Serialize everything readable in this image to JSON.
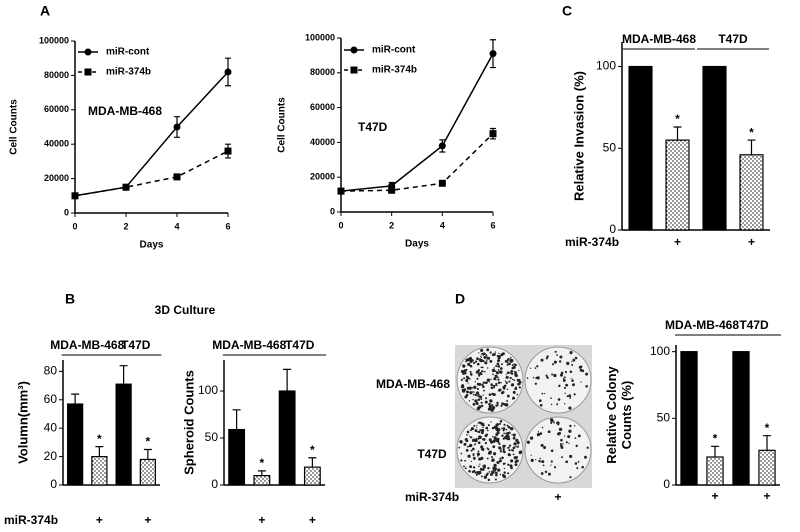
{
  "figure": {
    "panel_labels": [
      "A",
      "B",
      "C",
      "D"
    ],
    "section_title": "3D Culture",
    "colony_rows": [
      "MDA-MB-468",
      "T47D"
    ],
    "colony_treatment_label": "miR-374b",
    "colony_columns": [
      null,
      "+"
    ]
  },
  "chart_data": [
    {
      "type": "line",
      "ylabel": "Cell Counts",
      "xlabel": "Days",
      "annotation": "MDA-MB-468",
      "legend": "upper-left",
      "x": [
        0,
        2,
        4,
        6
      ],
      "xlim": [
        0,
        6
      ],
      "xticks": [
        0,
        2,
        4,
        6
      ],
      "ylim": [
        0,
        100000
      ],
      "yticks": [
        0,
        20000,
        40000,
        60000,
        80000,
        100000
      ],
      "series": [
        {
          "name": "miR-cont",
          "color": "#000000",
          "marker": "circle",
          "line_style": "solid",
          "values": [
            10000,
            15000,
            50000,
            82000
          ],
          "errors": [
            500,
            1000,
            6000,
            8000
          ]
        },
        {
          "name": "miR-374b",
          "color": "#000000",
          "marker": "square",
          "line_style": "dashed",
          "values": [
            10000,
            15000,
            21000,
            36000
          ],
          "errors": [
            500,
            1000,
            1500,
            4000
          ]
        }
      ]
    },
    {
      "type": "line",
      "ylabel": "Cell Counts",
      "xlabel": "Days",
      "annotation": "T47D",
      "legend": "upper-left",
      "x": [
        0,
        2,
        4,
        6
      ],
      "xlim": [
        0,
        6
      ],
      "xticks": [
        0,
        2,
        4,
        6
      ],
      "ylim": [
        0,
        100000
      ],
      "yticks": [
        0,
        20000,
        40000,
        60000,
        80000,
        100000
      ],
      "series": [
        {
          "name": "miR-cont",
          "color": "#000000",
          "marker": "circle",
          "line_style": "solid",
          "values": [
            12000,
            15000,
            38000,
            91000
          ],
          "errors": [
            1000,
            2000,
            3500,
            8000
          ]
        },
        {
          "name": "miR-374b",
          "color": "#000000",
          "marker": "square",
          "line_style": "dashed",
          "values": [
            12000,
            12500,
            16500,
            45000
          ],
          "errors": [
            1000,
            1500,
            1500,
            3000
          ]
        }
      ]
    },
    {
      "type": "bar",
      "ylabel": "Relative Invasion (%)",
      "groups": [
        "MDA-MB-468",
        "T47D"
      ],
      "category_axis_label": "miR-374b",
      "categories": [
        null,
        "+",
        null,
        "+"
      ],
      "values": [
        100,
        55,
        100,
        46
      ],
      "errors": [
        null,
        8,
        null,
        9
      ],
      "significance": [
        null,
        "*",
        null,
        "*"
      ],
      "fills": [
        "solid",
        "dotted",
        "solid",
        "dotted"
      ],
      "color": "#000000",
      "ylim": [
        0,
        115
      ],
      "yticks": [
        0,
        50,
        100
      ]
    },
    {
      "type": "bar",
      "ylabel": "Volumn(mm³)",
      "groups": [
        "MDA-MB-468",
        "T47D"
      ],
      "category_axis_label": "miR-374b",
      "categories": [
        null,
        "+",
        null,
        "+"
      ],
      "values": [
        57,
        20,
        71,
        18
      ],
      "errors": [
        7,
        7,
        13,
        7
      ],
      "significance": [
        null,
        "*",
        null,
        "*"
      ],
      "fills": [
        "solid",
        "dotted",
        "solid",
        "dotted"
      ],
      "color": "#000000",
      "ylim": [
        0,
        88
      ],
      "yticks": [
        0,
        20,
        40,
        60,
        80
      ]
    },
    {
      "type": "bar",
      "ylabel": "Spheroid Counts",
      "groups": [
        "MDA-MB-468",
        "T47D"
      ],
      "categories": [
        null,
        "+",
        null,
        "+"
      ],
      "values": [
        59,
        10,
        100,
        19
      ],
      "errors": [
        21,
        5,
        23,
        10
      ],
      "significance": [
        null,
        "*",
        null,
        "*"
      ],
      "fills": [
        "solid",
        "dotted",
        "solid",
        "dotted"
      ],
      "color": "#000000",
      "ylim": [
        0,
        133
      ],
      "yticks": [
        0,
        50,
        100
      ]
    },
    {
      "type": "bar",
      "ylabel": [
        "Relative Colony",
        "Counts (%)"
      ],
      "groups": [
        "MDA-MB-468",
        "T47D"
      ],
      "categories": [
        null,
        "+",
        null,
        "+"
      ],
      "values": [
        100,
        21,
        100,
        26
      ],
      "errors": [
        null,
        8,
        null,
        11
      ],
      "significance": [
        null,
        "*",
        null,
        "*"
      ],
      "fills": [
        "solid",
        "dotted",
        "solid",
        "dotted"
      ],
      "color": "#000000",
      "ylim": [
        0,
        105
      ],
      "yticks": [
        0,
        50,
        100
      ]
    }
  ]
}
